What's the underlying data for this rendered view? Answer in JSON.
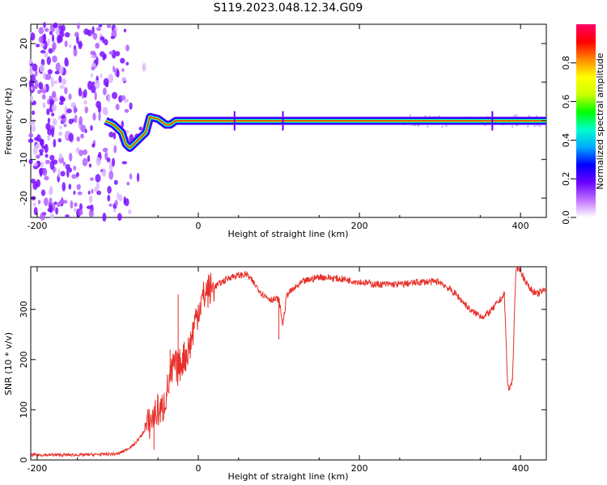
{
  "title": "S119.2023.048.12.34.G09",
  "chart_data": [
    {
      "type": "heatmap",
      "xlabel": "Height of straight line (km)",
      "ylabel": "Frequency (Hz)",
      "xlim": [
        -208,
        432
      ],
      "ylim": [
        -25,
        25
      ],
      "xticks": [
        -200,
        0,
        200,
        400
      ],
      "yticks": [
        -20,
        -10,
        0,
        10,
        20
      ],
      "colorbar": {
        "label": "Normalized spectral amplitude",
        "ticks": [
          0.0,
          0.2,
          0.4,
          0.6,
          0.8
        ],
        "range": [
          0,
          1
        ],
        "colors": [
          "#ffffff",
          "#c070ff",
          "#6a00ff",
          "#0000ff",
          "#00aaff",
          "#00ffcc",
          "#00ff00",
          "#ccff00",
          "#ffff00",
          "#ff8800",
          "#ff0000",
          "#ff0066"
        ]
      },
      "frequency_track": [
        {
          "x": -115,
          "y": 0
        },
        {
          "x": -105,
          "y": -1
        },
        {
          "x": -95,
          "y": -3
        },
        {
          "x": -90,
          "y": -6
        },
        {
          "x": -85,
          "y": -7
        },
        {
          "x": -75,
          "y": -5
        },
        {
          "x": -65,
          "y": -3
        },
        {
          "x": -60,
          "y": 1
        },
        {
          "x": -50,
          "y": 0.5
        },
        {
          "x": -40,
          "y": -1
        },
        {
          "x": -35,
          "y": -1
        },
        {
          "x": -28,
          "y": 0
        },
        {
          "x": 432,
          "y": 0
        }
      ]
    },
    {
      "type": "line",
      "xlabel": "Height of straight line (km)",
      "ylabel": "SNR (10 * v/v)",
      "xlim": [
        -208,
        432
      ],
      "ylim": [
        0,
        385
      ],
      "xticks": [
        -200,
        0,
        200,
        400
      ],
      "yticks": [
        0,
        100,
        200,
        300
      ],
      "color": "#e8302a",
      "x": [
        -208,
        -150,
        -100,
        -90,
        -80,
        -70,
        -60,
        -50,
        -45,
        -40,
        -35,
        -30,
        -25,
        -20,
        -15,
        -10,
        -5,
        0,
        5,
        10,
        20,
        30,
        40,
        60,
        80,
        90,
        100,
        105,
        110,
        130,
        150,
        180,
        200,
        220,
        250,
        280,
        300,
        320,
        340,
        355,
        365,
        375,
        380,
        384,
        386,
        390,
        394,
        398,
        402,
        410,
        420,
        432
      ],
      "values": [
        10,
        10,
        12,
        20,
        30,
        50,
        75,
        100,
        95,
        130,
        160,
        190,
        180,
        200,
        210,
        230,
        270,
        300,
        320,
        335,
        345,
        355,
        365,
        370,
        330,
        320,
        320,
        270,
        330,
        355,
        365,
        360,
        355,
        350,
        350,
        355,
        355,
        330,
        295,
        285,
        300,
        320,
        330,
        150,
        140,
        160,
        370,
        385,
        370,
        345,
        330,
        340
      ],
      "spikes": [
        {
          "x": -55,
          "y": 20
        },
        {
          "x": -45,
          "y": 130
        },
        {
          "x": -35,
          "y": 220
        },
        {
          "x": -25,
          "y": 330
        },
        {
          "x": 100,
          "y": 240
        },
        {
          "x": 380,
          "y": 335
        }
      ]
    }
  ]
}
